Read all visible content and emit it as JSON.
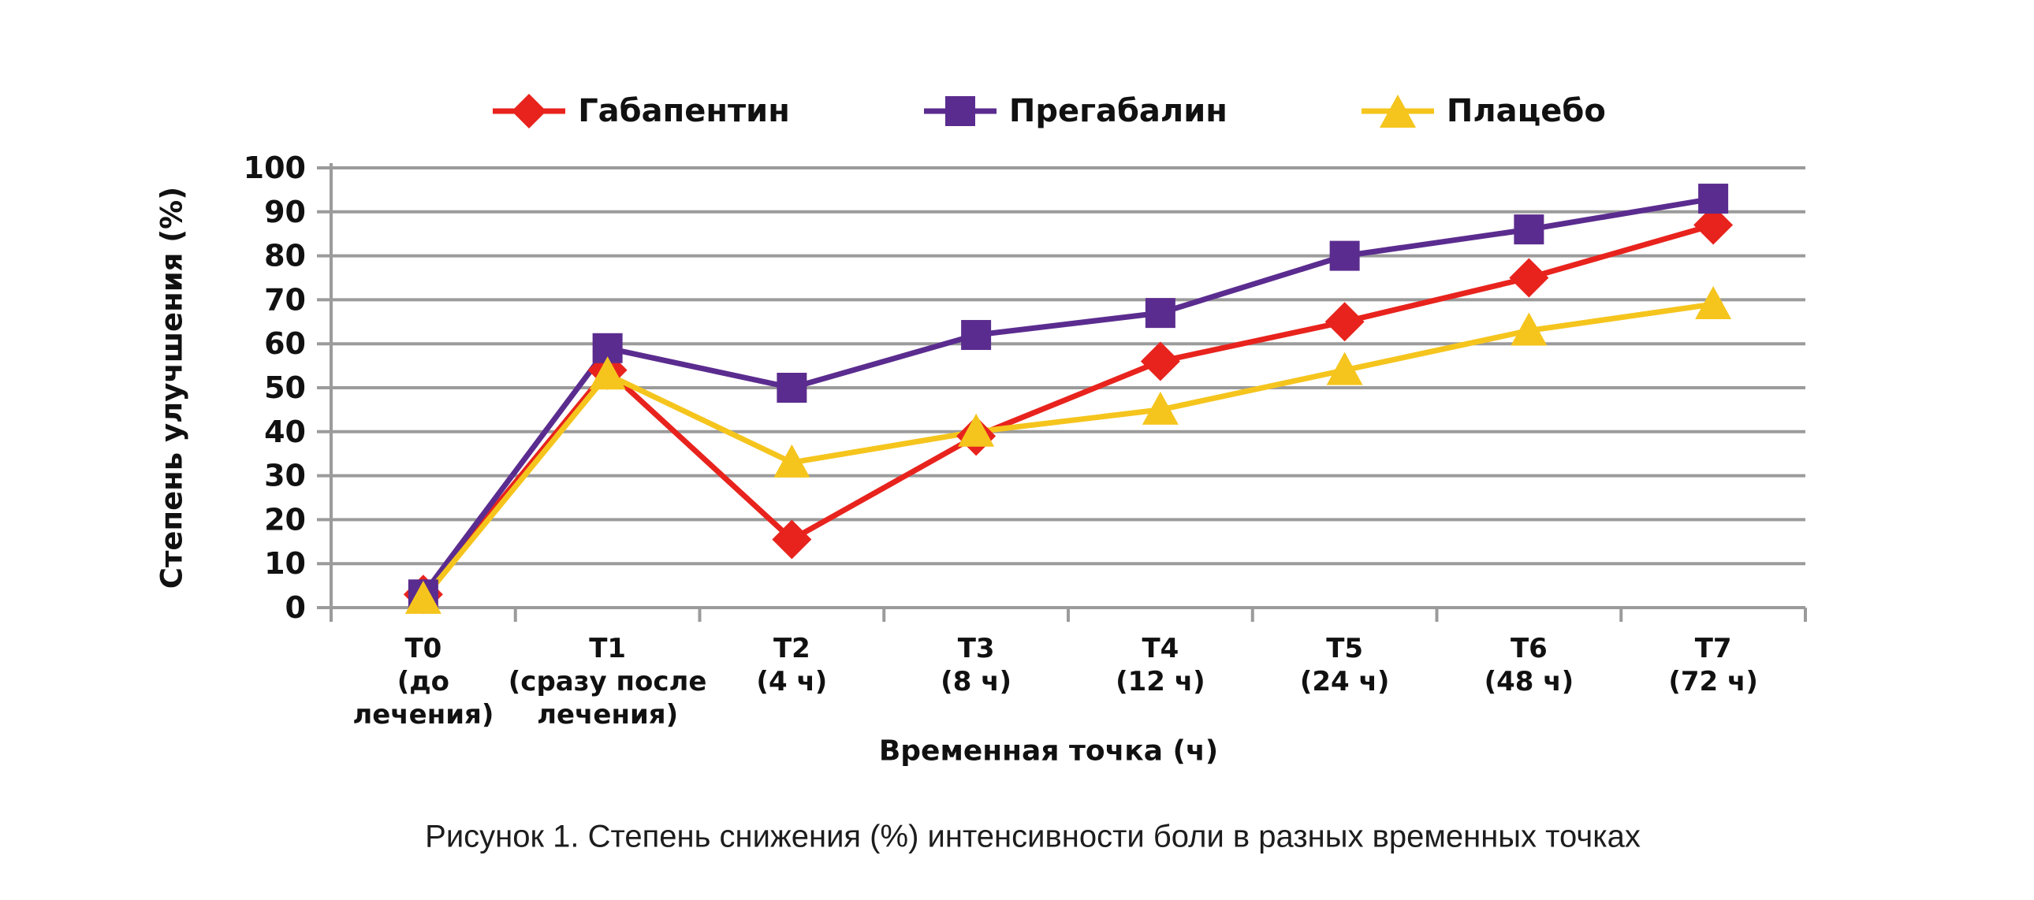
{
  "caption": "Рисунок 1. Степень снижения (%) интенсивности боли в разных временных точках",
  "chart_data": {
    "type": "line",
    "xlabel": "Временная точка (ч)",
    "ylabel": "Степень улучшения (%)",
    "ylim": [
      0,
      100
    ],
    "ytick_step": 10,
    "grid": true,
    "legend_position": "top",
    "grid_color": "#9b9b9b",
    "categories": [
      [
        "Т0",
        "(до",
        "лечения)"
      ],
      [
        "Т1",
        "(сразу после",
        "лечения)"
      ],
      [
        "Т2",
        "(4 ч)"
      ],
      [
        "Т3",
        "(8 ч)"
      ],
      [
        "Т4",
        "(12 ч)"
      ],
      [
        "Т5",
        "(24 ч)"
      ],
      [
        "Т6",
        "(48 ч)"
      ],
      [
        "Т7",
        "(72 ч)"
      ]
    ],
    "series": [
      {
        "name": "Габапентин",
        "color": "#e8231d",
        "marker": "diamond",
        "values": [
          3,
          54,
          15.5,
          39,
          56,
          65,
          75,
          87
        ]
      },
      {
        "name": "Прегабалин",
        "color": "#5b2c8f",
        "marker": "square",
        "values": [
          3,
          59,
          50,
          62,
          67,
          80,
          86,
          93
        ]
      },
      {
        "name": "Плацебо",
        "color": "#f5c51d",
        "marker": "triangle",
        "values": [
          2,
          53,
          33,
          40,
          45,
          54,
          63,
          69
        ]
      }
    ]
  }
}
